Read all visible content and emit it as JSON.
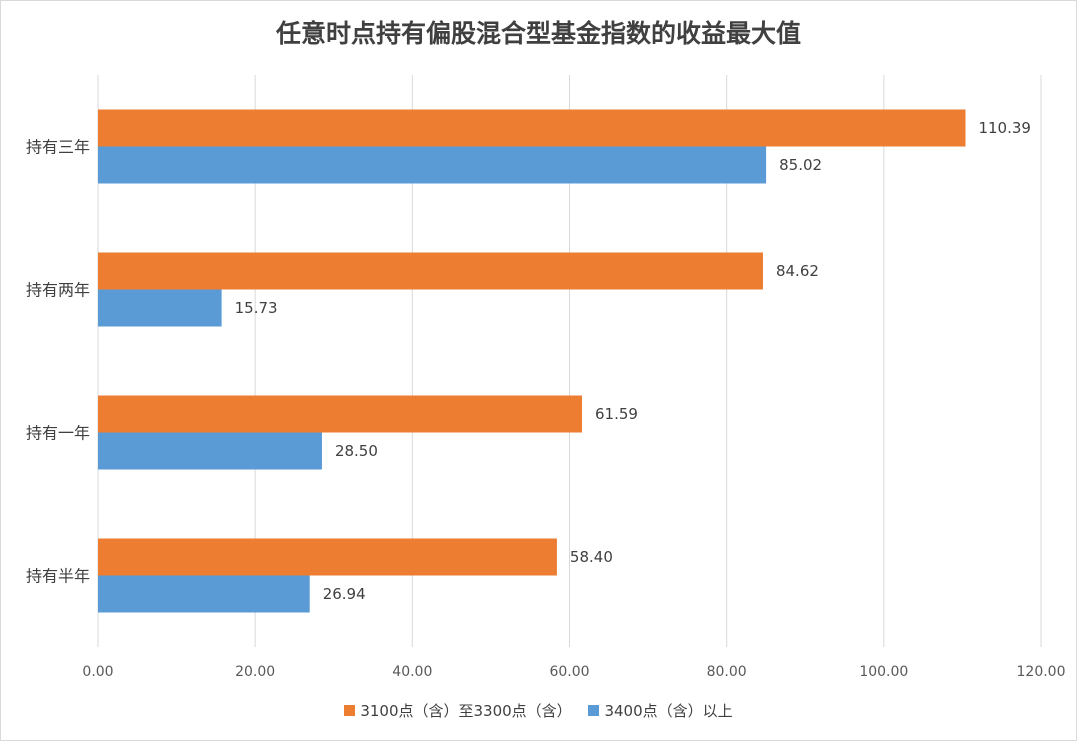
{
  "chart_data": {
    "type": "bar",
    "orientation": "horizontal",
    "title": "任意时点持有偏股混合型基金指数的收益最大值",
    "categories": [
      "持有三年",
      "持有两年",
      "持有一年",
      "持有半年"
    ],
    "series": [
      {
        "name": "3100点（含）至3300点（含）",
        "color": "#ed7d31",
        "values": [
          110.39,
          84.62,
          61.59,
          58.4
        ],
        "labels": [
          "110.39",
          "84.62",
          "61.59",
          "58.40"
        ]
      },
      {
        "name": "3400点（含）以上",
        "color": "#5b9bd5",
        "values": [
          85.02,
          15.73,
          28.5,
          26.94
        ],
        "labels": [
          "85.02",
          "15.73",
          "28.50",
          "26.94"
        ]
      }
    ],
    "xlim": [
      0,
      120
    ],
    "ticks": [
      "0.00",
      "20.00",
      "40.00",
      "60.00",
      "80.00",
      "100.00",
      "120.00"
    ],
    "grid": true,
    "legend_position": "bottom"
  }
}
